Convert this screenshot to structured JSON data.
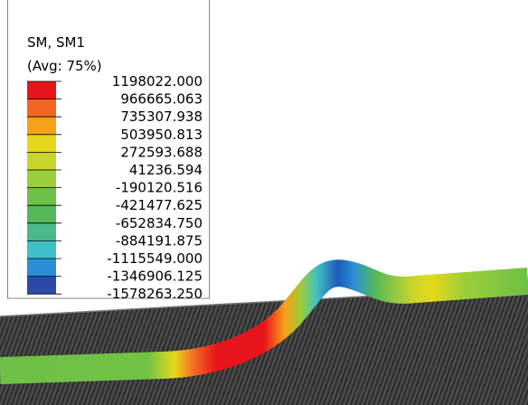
{
  "legend": {
    "title": "SM, SM1",
    "subtitle": "(Avg: 75%)",
    "labels": [
      "1198022.000",
      "966665.063",
      "735307.938",
      "503950.813",
      "272593.688",
      "41236.594",
      "-190120.516",
      "-421477.625",
      "-652834.750",
      "-884191.875",
      "-1115549.000",
      "-1346906.125",
      "-1578263.250"
    ]
  }
}
